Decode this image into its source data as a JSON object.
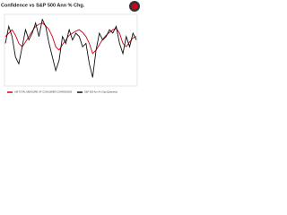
{
  "chart_data": {
    "type": "line",
    "title": "Confidence vs S&P 500 Ann % Chg.",
    "ylim": [
      0,
      100
    ],
    "series": [
      {
        "name": "UM TOTAL MEASURE OF CONSUMER CONFIDENCE",
        "color": "#d0021b",
        "values": [
          70,
          75,
          80,
          72,
          60,
          55,
          62,
          70,
          78,
          85,
          88,
          90,
          86,
          80,
          70,
          55,
          50,
          58,
          65,
          72,
          75,
          78,
          80,
          76,
          70,
          60,
          45,
          50,
          58,
          66,
          72,
          76,
          80,
          82,
          75,
          60,
          55,
          62,
          68,
          70
        ]
      },
      {
        "name": "S&P 500 Ann % Chg (Quarterly)",
        "color": "#111111",
        "values": [
          60,
          85,
          70,
          40,
          30,
          55,
          80,
          65,
          75,
          90,
          70,
          95,
          85,
          60,
          40,
          20,
          35,
          70,
          60,
          80,
          65,
          75,
          70,
          55,
          60,
          30,
          10,
          50,
          75,
          65,
          70,
          80,
          75,
          85,
          60,
          45,
          70,
          55,
          75,
          65
        ]
      }
    ]
  }
}
